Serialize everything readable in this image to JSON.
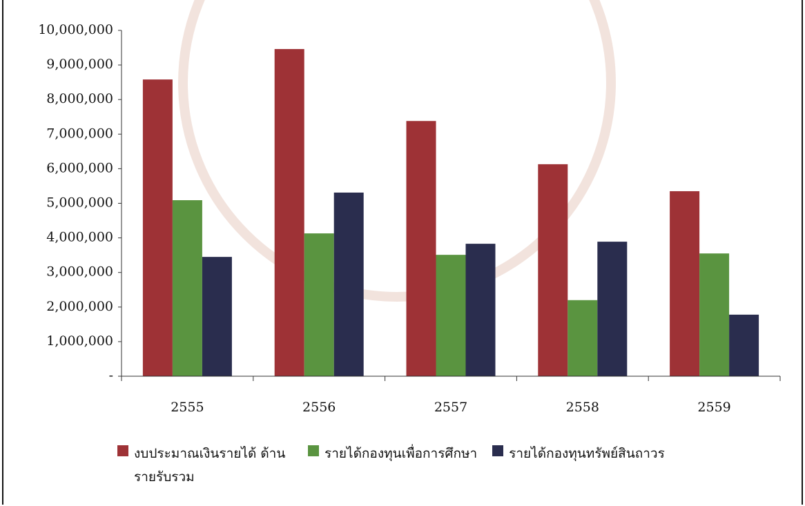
{
  "chart_data": {
    "type": "bar",
    "categories": [
      "2555",
      "2556",
      "2557",
      "2558",
      "2559"
    ],
    "series": [
      {
        "name": "งบประมาณเงินรายได้ ด้านรายรับรวม",
        "color": "#9e3236",
        "values": [
          8580000,
          9460000,
          7380000,
          6130000,
          5350000
        ]
      },
      {
        "name": "รายได้กองทุนเพื่อการศึกษา",
        "color": "#5a9440",
        "values": [
          5090000,
          4130000,
          3510000,
          2200000,
          3550000
        ]
      },
      {
        "name": "รายได้กองทุนทรัพย์สินถาวร",
        "color": "#2a2d4e",
        "values": [
          3450000,
          5310000,
          3830000,
          3890000,
          1780000
        ]
      }
    ],
    "ylim": [
      0,
      10000000
    ],
    "yticks": [
      {
        "value": 0,
        "label": "-"
      },
      {
        "value": 1000000,
        "label": "1,000,000"
      },
      {
        "value": 2000000,
        "label": "2,000,000"
      },
      {
        "value": 3000000,
        "label": "3,000,000"
      },
      {
        "value": 4000000,
        "label": "4,000,000"
      },
      {
        "value": 5000000,
        "label": "5,000,000"
      },
      {
        "value": 6000000,
        "label": "6,000,000"
      },
      {
        "value": 7000000,
        "label": "7,000,000"
      },
      {
        "value": 8000000,
        "label": "8,000,000"
      },
      {
        "value": 9000000,
        "label": "9,000,000"
      },
      {
        "value": 10000000,
        "label": "10,000,000"
      }
    ],
    "grid": false
  }
}
